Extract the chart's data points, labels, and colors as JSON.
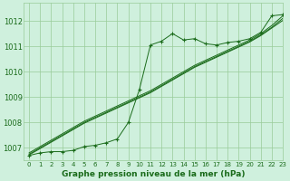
{
  "title": "Graphe pression niveau de la mer (hPa)",
  "bg_color": "#cff0dd",
  "grid_color": "#99cc99",
  "line_color": "#1a6b1a",
  "text_color": "#1a6b1a",
  "xlim": [
    -0.5,
    23
  ],
  "ylim": [
    1006.5,
    1012.7
  ],
  "yticks": [
    1007,
    1008,
    1009,
    1010,
    1011,
    1012
  ],
  "xticks": [
    0,
    1,
    2,
    3,
    4,
    5,
    6,
    7,
    8,
    9,
    10,
    11,
    12,
    13,
    14,
    15,
    16,
    17,
    18,
    19,
    20,
    21,
    22,
    23
  ],
  "main_data": [
    1006.7,
    1006.8,
    1006.85,
    1006.85,
    1006.9,
    1007.05,
    1007.1,
    1007.2,
    1007.35,
    1008.0,
    1009.3,
    1011.05,
    1011.2,
    1011.5,
    1011.25,
    1011.3,
    1011.1,
    1011.05,
    1011.15,
    1011.2,
    1011.3,
    1011.55,
    1012.2,
    1012.25
  ],
  "smooth1": [
    1006.72,
    1006.97,
    1007.22,
    1007.47,
    1007.72,
    1007.97,
    1008.17,
    1008.37,
    1008.57,
    1008.77,
    1008.97,
    1009.17,
    1009.42,
    1009.67,
    1009.92,
    1010.17,
    1010.37,
    1010.57,
    1010.77,
    1010.97,
    1011.17,
    1011.42,
    1011.72,
    1012.02
  ],
  "smooth2": [
    1006.75,
    1007.0,
    1007.25,
    1007.5,
    1007.75,
    1008.0,
    1008.2,
    1008.4,
    1008.6,
    1008.8,
    1009.0,
    1009.2,
    1009.45,
    1009.7,
    1009.95,
    1010.2,
    1010.4,
    1010.6,
    1010.8,
    1011.0,
    1011.2,
    1011.45,
    1011.75,
    1012.1
  ],
  "smooth3": [
    1006.8,
    1007.05,
    1007.3,
    1007.55,
    1007.8,
    1008.05,
    1008.25,
    1008.45,
    1008.65,
    1008.85,
    1009.05,
    1009.25,
    1009.5,
    1009.75,
    1010.0,
    1010.25,
    1010.45,
    1010.65,
    1010.85,
    1011.05,
    1011.25,
    1011.5,
    1011.82,
    1012.2
  ],
  "ylabel_fontsize": 6.0,
  "xlabel_fontsize": 5.0,
  "title_fontsize": 6.5
}
